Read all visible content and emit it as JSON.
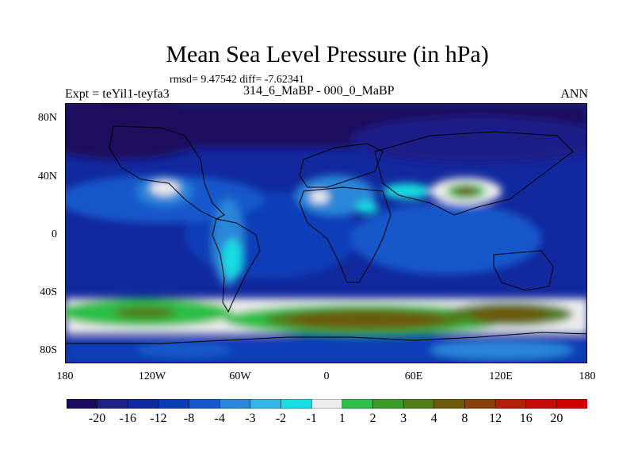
{
  "title": "Mean Sea Level Pressure (in hPa)",
  "stats": "rmsd= 9.47542 diff= -7.62341",
  "experiment": "Expt = teYil1-teyfa3",
  "comparison": "314_6_MaBP - 000_0_MaBP",
  "season": "ANN",
  "lat_labels": [
    "80N",
    "40N",
    "0",
    "40S",
    "80S"
  ],
  "lon_labels": [
    "180",
    "120W",
    "60W",
    "0",
    "60E",
    "120E",
    "180"
  ],
  "colorbar": {
    "labels": [
      "-20",
      "-16",
      "-12",
      "-8",
      "-4",
      "-3",
      "-2",
      "-1",
      "1",
      "2",
      "3",
      "4",
      "8",
      "12",
      "16",
      "20"
    ],
    "colors": [
      "#1a0a5e",
      "#1c1f86",
      "#12289e",
      "#0b3cb8",
      "#1558cc",
      "#2a86d8",
      "#33b4e2",
      "#19dde0",
      "#ececec",
      "#2bbf4a",
      "#3b9a2a",
      "#4f7c18",
      "#6b5a0e",
      "#8a3f0c",
      "#b02008",
      "#c80a0a",
      "#d00000"
    ]
  },
  "map_data": {
    "type": "contour-map",
    "variable": "Mean Sea Level Pressure difference",
    "units": "hPa",
    "lon_range": [
      -180,
      180
    ],
    "lat_range": [
      -90,
      90
    ]
  }
}
